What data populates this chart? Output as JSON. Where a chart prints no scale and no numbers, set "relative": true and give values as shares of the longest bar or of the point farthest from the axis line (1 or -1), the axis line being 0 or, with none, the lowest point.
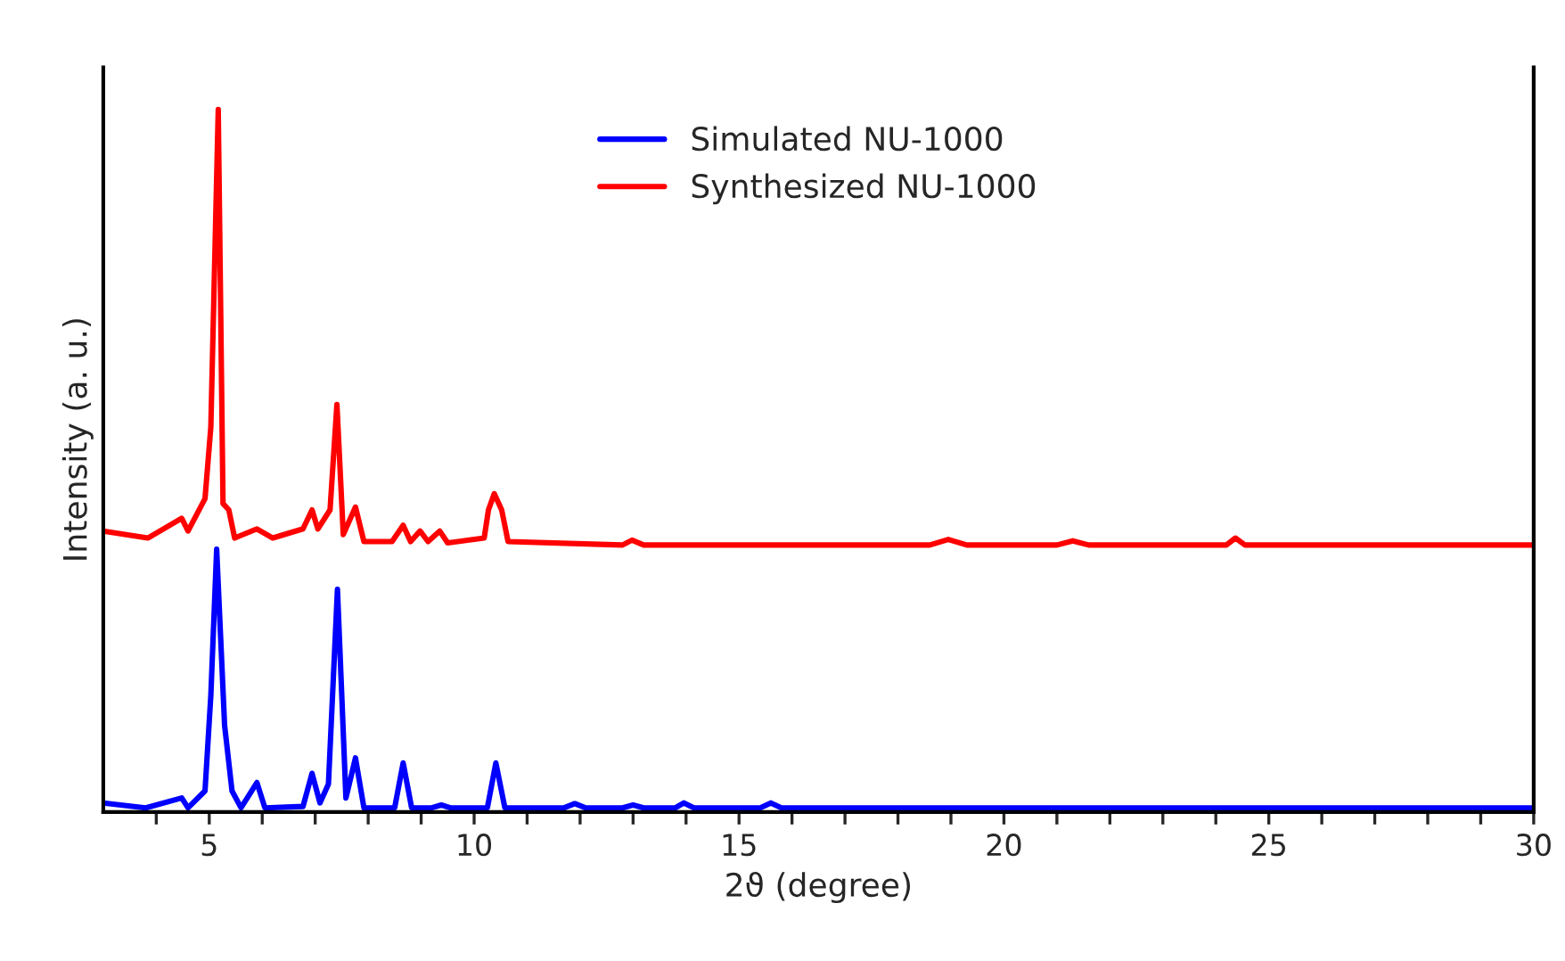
{
  "chart_data": {
    "type": "line",
    "xlabel": "2ϑ (degree)",
    "ylabel": "Intensity (a. u.)",
    "relative": true,
    "tick_labels": "x",
    "legend": "top",
    "grid": false,
    "xlim": [
      3,
      30
    ],
    "xticks": [
      {
        "value": 4,
        "label": null
      },
      5,
      {
        "value": 6,
        "label": null
      },
      {
        "value": 7,
        "label": null
      },
      {
        "value": 8,
        "label": null
      },
      {
        "value": 9,
        "label": null
      },
      10,
      {
        "value": 11,
        "label": null
      },
      {
        "value": 12,
        "label": null
      },
      {
        "value": 13,
        "label": null
      },
      {
        "value": 14,
        "label": null
      },
      15,
      {
        "value": 16,
        "label": null
      },
      {
        "value": 17,
        "label": null
      },
      {
        "value": 18,
        "label": null
      },
      {
        "value": 19,
        "label": null
      },
      20,
      {
        "value": 21,
        "label": null
      },
      {
        "value": 22,
        "label": null
      },
      {
        "value": 23,
        "label": null
      },
      {
        "value": 24,
        "label": null
      },
      25,
      {
        "value": 26,
        "label": null
      },
      {
        "value": 27,
        "label": null
      },
      {
        "value": 28,
        "label": null
      },
      {
        "value": 29,
        "label": null
      },
      30
    ],
    "series": [
      {
        "name": "Simulated NU-1000",
        "color": "#0000ff",
        "x": [
          3,
          3.8,
          4.48,
          4.6,
          4.92,
          5.03,
          5.14,
          5.29,
          5.43,
          5.6,
          5.9,
          6.05,
          6.77,
          6.94,
          7.09,
          7.25,
          7.42,
          7.58,
          7.76,
          7.92,
          8.5,
          8.66,
          8.82,
          9.2,
          9.38,
          9.55,
          10.25,
          10.41,
          10.58,
          11.7,
          11.9,
          12.1,
          12.8,
          13.0,
          13.2,
          13.8,
          13.96,
          14.15,
          15.4,
          15.6,
          15.8,
          30
        ],
        "values": [
          0.013,
          0.006,
          0.02,
          0.006,
          0.03,
          0.166,
          0.374,
          0.123,
          0.03,
          0.006,
          0.042,
          0.006,
          0.008,
          0.055,
          0.013,
          0.04,
          0.317,
          0.02,
          0.077,
          0.006,
          0.006,
          0.07,
          0.006,
          0.006,
          0.01,
          0.006,
          0.006,
          0.07,
          0.006,
          0.006,
          0.012,
          0.006,
          0.006,
          0.01,
          0.006,
          0.006,
          0.013,
          0.006,
          0.006,
          0.013,
          0.006,
          0.006
        ]
      },
      {
        "name": "Synthesized NU-1000",
        "color": "#ff0000",
        "x": [
          3,
          3.84,
          4.48,
          4.6,
          4.92,
          5.03,
          5.17,
          5.26,
          5.37,
          5.48,
          5.9,
          6.2,
          6.77,
          6.94,
          7.05,
          7.28,
          7.41,
          7.53,
          7.76,
          7.92,
          8.45,
          8.66,
          8.8,
          8.98,
          9.13,
          9.35,
          9.5,
          10.19,
          10.27,
          10.38,
          10.52,
          10.64,
          12.8,
          12.98,
          13.2,
          18.6,
          18.95,
          19.3,
          21.0,
          21.3,
          21.6,
          24.2,
          24.37,
          24.55,
          30
        ],
        "values": [
          0.4,
          0.39,
          0.418,
          0.4,
          0.446,
          0.548,
          1.0,
          0.439,
          0.43,
          0.39,
          0.403,
          0.39,
          0.403,
          0.43,
          0.403,
          0.43,
          0.58,
          0.395,
          0.434,
          0.385,
          0.385,
          0.408,
          0.385,
          0.4,
          0.385,
          0.4,
          0.383,
          0.39,
          0.43,
          0.453,
          0.43,
          0.385,
          0.38,
          0.387,
          0.38,
          0.38,
          0.388,
          0.38,
          0.38,
          0.386,
          0.38,
          0.38,
          0.39,
          0.38,
          0.38
        ]
      }
    ]
  }
}
